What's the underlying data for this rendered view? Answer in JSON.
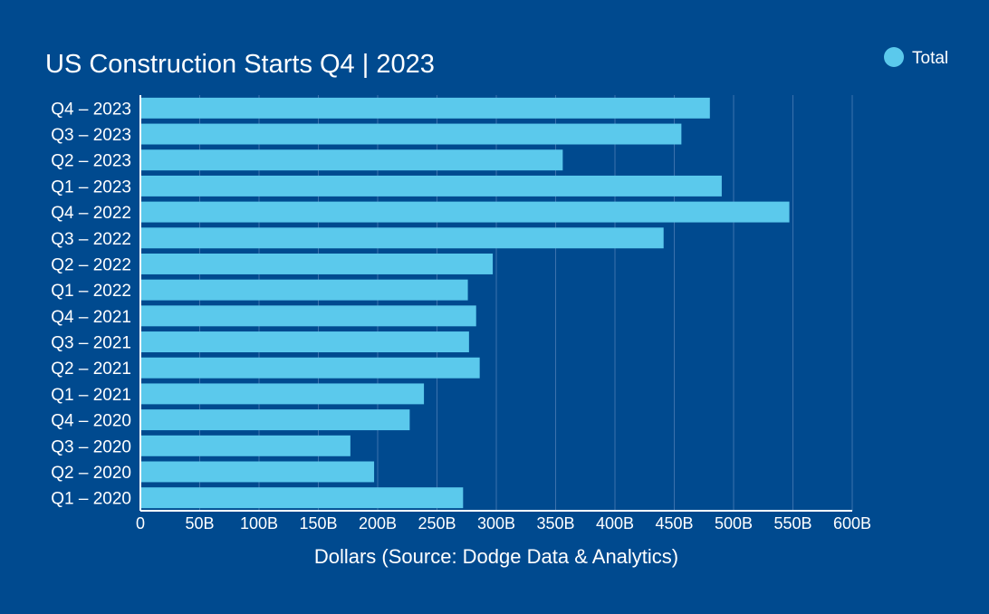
{
  "chart_data": {
    "type": "bar",
    "orientation": "horizontal",
    "title": "US Construction Starts Q4 | 2023",
    "xlabel": "Dollars (Source: Dodge Data & Analytics)",
    "ylabel": "",
    "categories": [
      "Q4 – 2023",
      "Q3 – 2023",
      "Q2 – 2023",
      "Q1 – 2023",
      "Q4 – 2022",
      "Q3 – 2022",
      "Q2 – 2022",
      "Q1 – 2022",
      "Q4 – 2021",
      "Q3 – 2021",
      "Q2 – 2021",
      "Q1 – 2021",
      "Q4 – 2020",
      "Q3 – 2020",
      "Q2 – 2020",
      "Q1 – 2020"
    ],
    "series": [
      {
        "name": "Total",
        "color": "#5bc9ec",
        "values": [
          480,
          456,
          356,
          490,
          547,
          441,
          297,
          276,
          283,
          277,
          286,
          239,
          227,
          177,
          197,
          272
        ]
      }
    ],
    "xlim": [
      0,
      600
    ],
    "xticks": [
      0,
      50,
      100,
      150,
      200,
      250,
      300,
      350,
      400,
      450,
      500,
      550,
      600
    ],
    "xtick_labels": [
      "0",
      "50B",
      "100B",
      "150B",
      "200B",
      "250B",
      "300B",
      "350B",
      "400B",
      "450B",
      "500B",
      "550B",
      "600B"
    ],
    "unit": "B",
    "grid": true,
    "legend_position": "top-right",
    "background_color": "#004a8f"
  }
}
